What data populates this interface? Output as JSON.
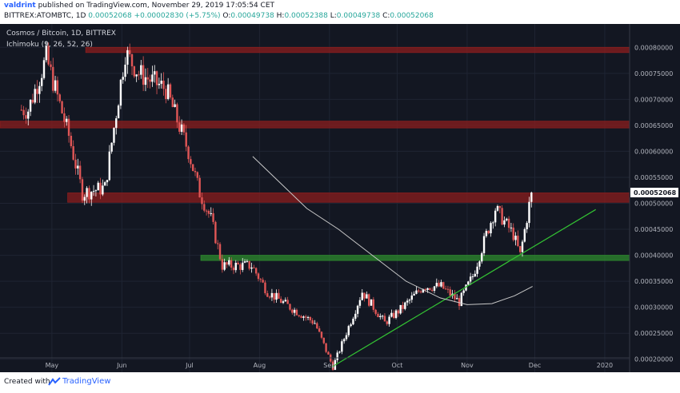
{
  "header": {
    "author": "valdrint",
    "published_text": "published on TradingView.com, November 29, 2019 17:05:54 CET",
    "symbol_line": "BITTREX:ATOMBTC, 1D",
    "close_value": "0.00052068",
    "change_value": "+0.00002830 (+5.75%)",
    "o_label": "O:",
    "o_value": "0.00049738",
    "h_label": "H:",
    "h_value": "0.00052388",
    "l_label": "L:",
    "l_value": "0.00049738",
    "c_label": "C:",
    "c_value": "0.00052068"
  },
  "legend": {
    "title": "Cosmos / Bitcoin, 1D, BITTREX",
    "indicator": "Ichimoku (9, 26, 52, 26)"
  },
  "footer": {
    "created_with": "Created with",
    "brand": "TradingView"
  },
  "colors": {
    "background": "#131722",
    "up": "#ffffff",
    "down": "#e05656",
    "resistance": "#8b1e1e",
    "support": "#2e8b2e",
    "trendline": "#33c233",
    "ma": "#c8c8c8",
    "price_tag": "#ffffff"
  },
  "chart_data": {
    "type": "candlestick",
    "title": "Cosmos / Bitcoin, 1D, BITTREX",
    "x_ticks": [
      "May",
      "Jun",
      "Jul",
      "Aug",
      "Sep",
      "Oct",
      "Nov",
      "Dec",
      "2020"
    ],
    "x_tick_dates": [
      "2019-05-01",
      "2019-06-01",
      "2019-07-01",
      "2019-08-01",
      "2019-09-01",
      "2019-10-01",
      "2019-11-01",
      "2019-12-01",
      "2020-01-01"
    ],
    "x_range": [
      "2019-04-08",
      "2020-01-12"
    ],
    "y_ticks": [
      "0.00080000",
      "0.00075000",
      "0.00070000",
      "0.00065000",
      "0.00060000",
      "0.00055000",
      "0.00050000",
      "0.00045000",
      "0.00040000",
      "0.00035000",
      "0.00030000",
      "0.00025000",
      "0.00020000"
    ],
    "y_range": [
      0.000175,
      0.000845
    ],
    "last_price": "0.00052068",
    "grid": true,
    "candle_key_dates": [
      "2019-04-20",
      "2019-04-28",
      "2019-05-08",
      "2019-05-14",
      "2019-05-24",
      "2019-06-02",
      "2019-06-08",
      "2019-06-20",
      "2019-06-30",
      "2019-07-05",
      "2019-07-10",
      "2019-07-15",
      "2019-07-28",
      "2019-08-04",
      "2019-08-14",
      "2019-08-25",
      "2019-09-02",
      "2019-09-07",
      "2019-09-15",
      "2019-09-25",
      "2019-10-03",
      "2019-10-12",
      "2019-10-20",
      "2019-10-28",
      "2019-11-03",
      "2019-11-09",
      "2019-11-13",
      "2019-11-21",
      "2019-11-24",
      "2019-11-29"
    ],
    "candle_key_closes": [
      0.00068,
      0.00078,
      0.00063,
      0.00052,
      0.00053,
      0.00079,
      0.00075,
      0.00072,
      0.0006,
      0.00052,
      0.00047,
      0.00038,
      0.00038,
      0.00033,
      0.0003,
      0.00027,
      0.000185,
      0.00024,
      0.00033,
      0.00027,
      0.0003,
      0.00034,
      0.00034,
      0.00031,
      0.00036,
      0.00044,
      0.00049,
      0.00044,
      0.0004,
      0.00052068
    ],
    "zones": [
      {
        "kind": "resistance",
        "from": 0.00079,
        "to": 0.0008,
        "start": "2019-05-16"
      },
      {
        "kind": "resistance",
        "from": 0.000645,
        "to": 0.000658,
        "start": "2019-04-08"
      },
      {
        "kind": "resistance",
        "from": 0.000502,
        "to": 0.00052,
        "start": "2019-05-08"
      },
      {
        "kind": "support",
        "from": 0.00039,
        "to": 0.0004,
        "start": "2019-07-06"
      }
    ],
    "trendline": {
      "start": [
        "2019-09-02",
        0.000185
      ],
      "end": [
        "2019-12-28",
        0.000488
      ]
    },
    "ma_line": {
      "dates": [
        "2019-07-29",
        "2019-08-10",
        "2019-08-22",
        "2019-09-05",
        "2019-09-20",
        "2019-10-05",
        "2019-10-20",
        "2019-11-01",
        "2019-11-12",
        "2019-11-22",
        "2019-11-30"
      ],
      "values": [
        0.00059,
        0.00054,
        0.00049,
        0.00045,
        0.0004,
        0.00035,
        0.000318,
        0.000305,
        0.000307,
        0.000322,
        0.00034
      ]
    }
  }
}
